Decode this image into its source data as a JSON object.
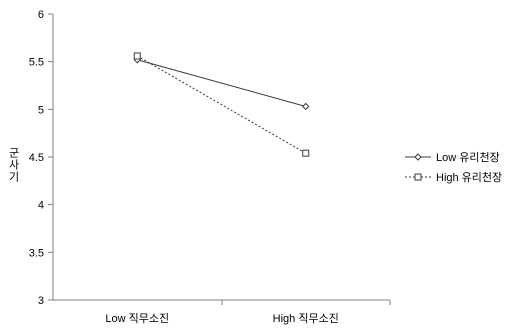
{
  "chart_data": {
    "type": "line",
    "title": "",
    "xlabel": "",
    "ylabel": "군사기",
    "categories": [
      "Low 직무소진",
      "High 직무소진"
    ],
    "ylim": [
      3,
      6
    ],
    "yticks": [
      3,
      3.5,
      4,
      4.5,
      5,
      5.5,
      6
    ],
    "ytick_labels": [
      "3",
      "3.5",
      "4",
      "4.5",
      "5",
      "5.5",
      "6"
    ],
    "grid": false,
    "legend_position": "right",
    "series": [
      {
        "name": "Low 유리천장",
        "values": [
          5.52,
          5.03
        ],
        "line": "solid",
        "marker": "diamond",
        "color": "#3a3a3a"
      },
      {
        "name": "High 유리천장",
        "values": [
          5.56,
          4.54
        ],
        "line": "dashed",
        "marker": "square",
        "color": "#3a3a3a"
      }
    ]
  }
}
